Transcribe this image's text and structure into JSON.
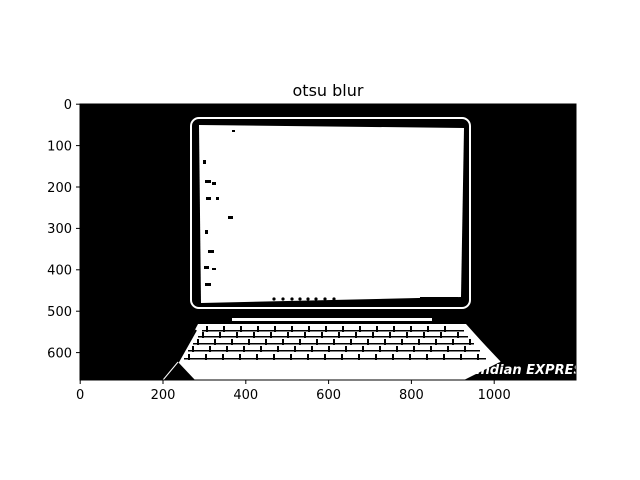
{
  "figure": {
    "title": "otsu blur"
  },
  "axes": {
    "x_ticks": [
      "0",
      "200",
      "400",
      "600",
      "800",
      "1000"
    ],
    "y_ticks": [
      "0",
      "100",
      "200",
      "300",
      "400",
      "500",
      "600"
    ]
  },
  "image": {
    "description_colors": {
      "background": "#000000",
      "foreground": "#ffffff"
    },
    "watermark": "The Indian EXPRESS"
  }
}
